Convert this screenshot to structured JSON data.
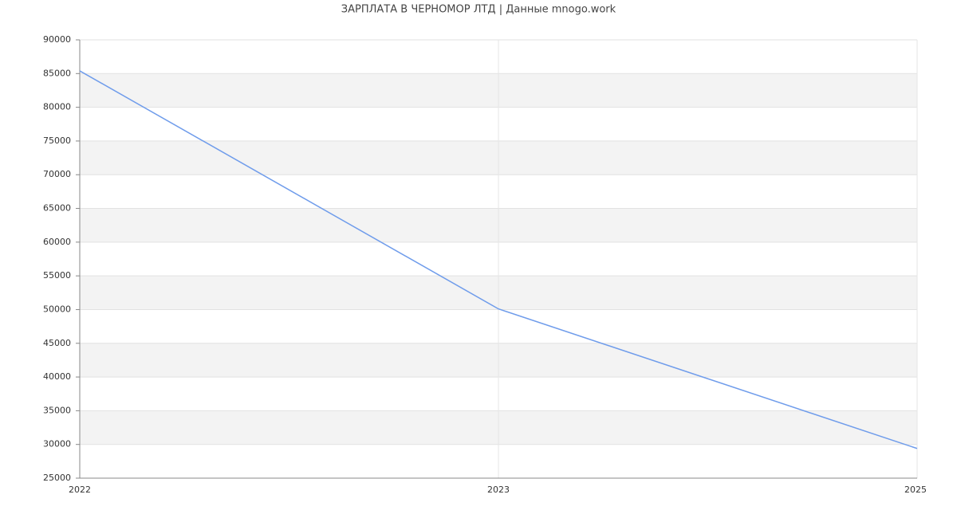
{
  "chart_data": {
    "type": "line",
    "title": "ЗАРПЛАТА В ЧЕРНОМОР ЛТД | Данные mnogo.work",
    "categories": [
      "2022",
      "2023",
      "2025"
    ],
    "series": [
      {
        "name": "ЗАРПЛАТА",
        "color": "#6f9ceb",
        "values": [
          85400,
          50100,
          29400
        ]
      }
    ],
    "ylim": [
      25000,
      90000
    ],
    "yticks": [
      25000,
      30000,
      35000,
      40000,
      45000,
      50000,
      55000,
      60000,
      65000,
      70000,
      75000,
      80000,
      85000,
      90000
    ],
    "grid": true,
    "bands": true,
    "legend": false
  }
}
